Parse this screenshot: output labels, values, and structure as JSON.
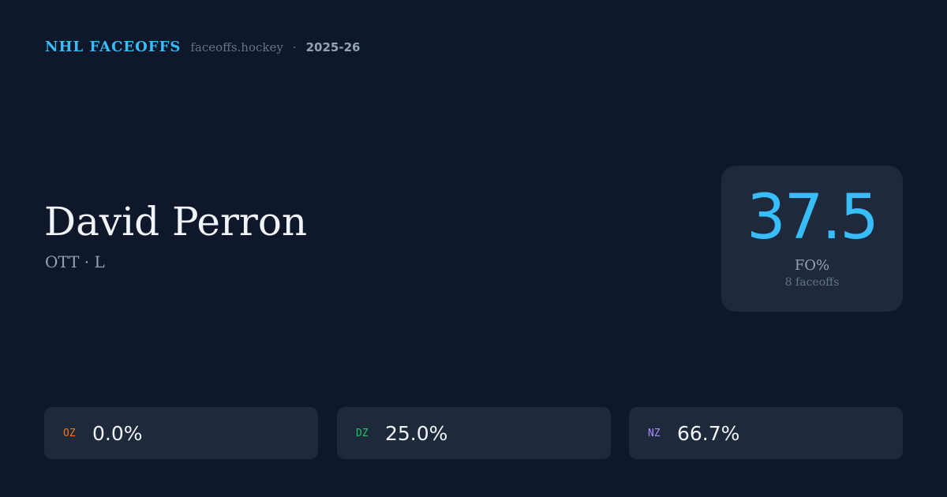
{
  "header": {
    "brand": "NHL FACEOFFS",
    "site": "faceoffs.hockey",
    "separator": "·",
    "season": "2025-26"
  },
  "player": {
    "name": "David Perron",
    "meta": "OTT · L"
  },
  "fo": {
    "value": "37.5",
    "label": "FO%",
    "count": "8 faceoffs"
  },
  "zones": [
    {
      "label": "OZ",
      "value": "0.0%",
      "color": "#f97316"
    },
    {
      "label": "DZ",
      "value": "25.0%",
      "color": "#22c55e"
    },
    {
      "label": "NZ",
      "value": "66.7%",
      "color": "#a78bfa"
    }
  ]
}
